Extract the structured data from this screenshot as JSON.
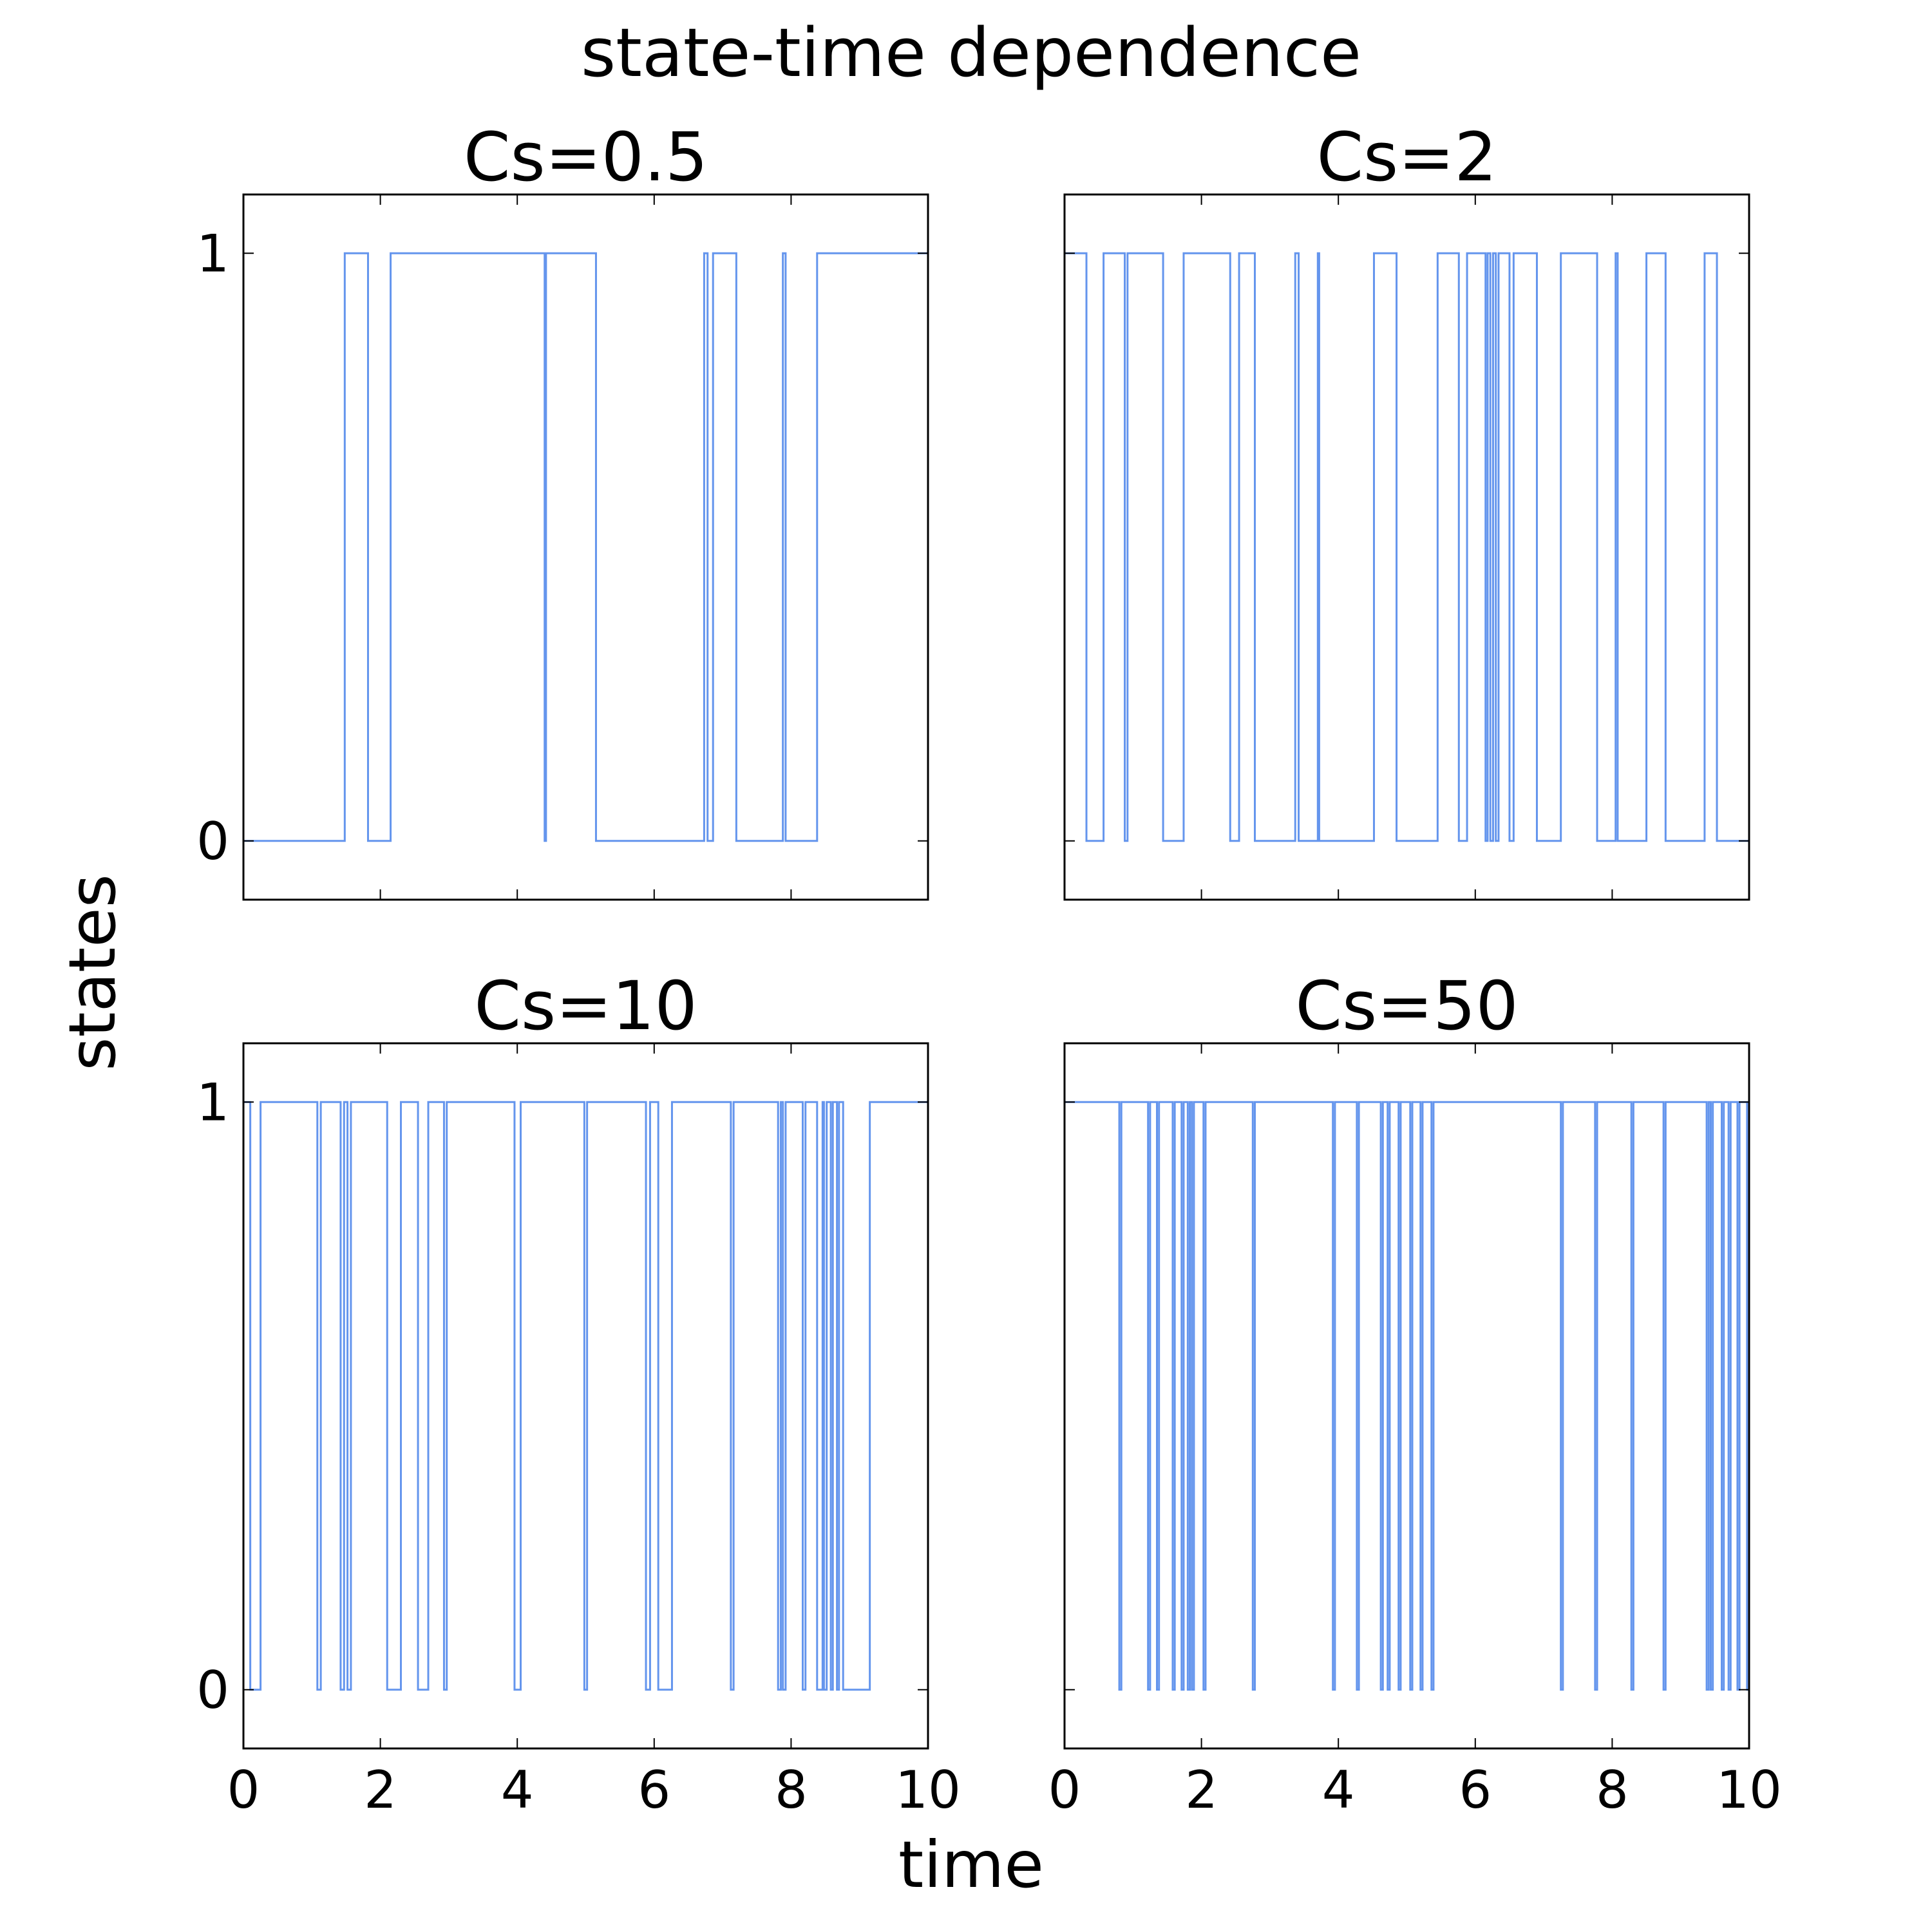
{
  "chart_data": {
    "type": "line",
    "step": true,
    "title": "state-time dependence",
    "xlabel": "time",
    "ylabel": "states",
    "xlim": [
      0,
      10
    ],
    "ylim": [
      -0.1,
      1.1
    ],
    "xticks": [
      0,
      2,
      4,
      6,
      8,
      10
    ],
    "yticks": [
      0,
      1
    ],
    "line_color": "#6495ed",
    "panels": [
      {
        "title": "Cs=0.5",
        "initial_state": 0,
        "switch_times": [
          1.48,
          1.82,
          2.15,
          4.4,
          4.42,
          5.15,
          6.73,
          6.78,
          6.86,
          7.2,
          7.88,
          7.92,
          8.38
        ]
      },
      {
        "title": "Cs=2",
        "initial_state": 1,
        "switch_times": [
          0.32,
          0.57,
          0.88,
          0.92,
          1.44,
          1.74,
          2.42,
          2.55,
          2.78,
          3.37,
          3.42,
          3.7,
          3.72,
          4.52,
          4.85,
          5.45,
          5.76,
          5.88,
          6.15,
          6.18,
          6.22,
          6.26,
          6.3,
          6.34,
          6.5,
          6.56,
          6.9,
          7.25,
          7.78,
          8.05,
          8.08,
          8.5,
          8.78,
          9.35,
          9.53
        ]
      },
      {
        "title": "Cs=10",
        "initial_state": 1,
        "switch_times": [
          0.1,
          0.25,
          1.08,
          1.13,
          1.42,
          1.47,
          1.52,
          1.57,
          2.1,
          2.3,
          2.55,
          2.7,
          2.93,
          2.97,
          3.96,
          4.05,
          4.98,
          5.02,
          5.88,
          5.94,
          6.06,
          6.26,
          7.12,
          7.16,
          7.81,
          7.85,
          7.88,
          7.92,
          8.17,
          8.21,
          8.38,
          8.46,
          8.48,
          8.52,
          8.58,
          8.61,
          8.67,
          8.7,
          8.76,
          9.15
        ]
      },
      {
        "title": "Cs=50",
        "initial_state": 1,
        "switch_times": [
          0.8,
          0.83,
          1.22,
          1.25,
          1.35,
          1.38,
          1.58,
          1.61,
          1.71,
          1.74,
          1.8,
          1.83,
          1.86,
          1.89,
          2.03,
          2.06,
          2.75,
          2.78,
          3.92,
          3.95,
          4.27,
          4.3,
          4.62,
          4.65,
          4.72,
          4.75,
          4.88,
          4.91,
          5.05,
          5.08,
          5.2,
          5.23,
          5.36,
          5.39,
          7.25,
          7.28,
          7.75,
          7.78,
          8.28,
          8.31,
          8.75,
          8.78,
          9.38,
          9.41,
          9.44,
          9.47,
          9.6,
          9.63,
          9.7,
          9.73,
          9.83,
          9.86,
          9.97,
          10.0
        ]
      }
    ]
  }
}
